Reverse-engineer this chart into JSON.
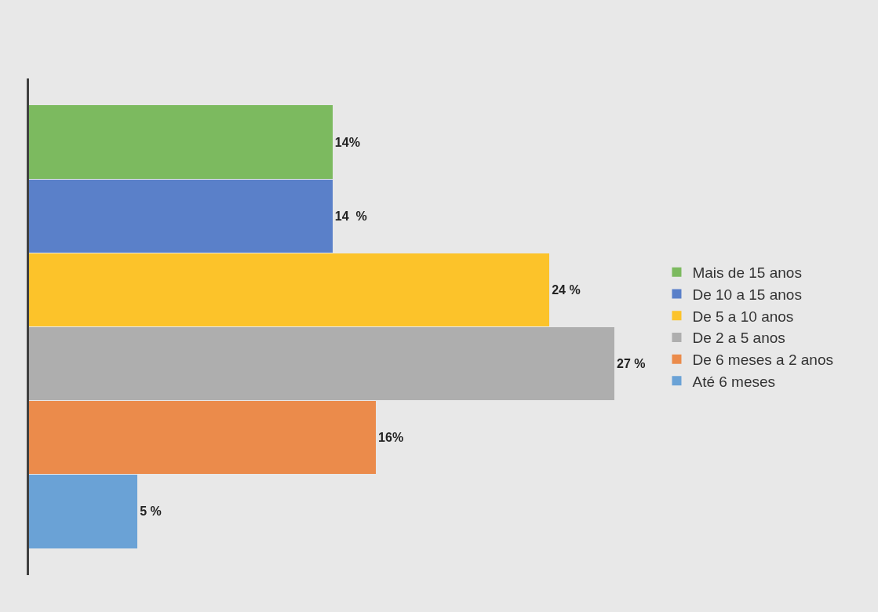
{
  "chart_data": {
    "type": "bar",
    "orientation": "horizontal",
    "stacked": true,
    "categories": [
      null,
      null,
      null,
      null,
      null,
      null
    ],
    "series": [
      {
        "name": "Mais de 15 anos",
        "color": "#7cba5f",
        "values": [
          14,
          null,
          null,
          null,
          null,
          null
        ],
        "value_labels": [
          "14%",
          null,
          null,
          null,
          null,
          null
        ]
      },
      {
        "name": "De 10 a 15 anos",
        "color": "#5a80c9",
        "values": [
          null,
          14,
          null,
          null,
          null,
          null
        ],
        "value_labels": [
          null,
          "14  %",
          null,
          null,
          null,
          null
        ]
      },
      {
        "name": "De 5 a 10 anos",
        "color": "#fcc32a",
        "values": [
          null,
          null,
          24,
          null,
          null,
          null
        ],
        "value_labels": [
          null,
          null,
          "24 %",
          null,
          null,
          null
        ]
      },
      {
        "name": "De 2 a 5 anos",
        "color": "#aeaeae",
        "values": [
          null,
          null,
          null,
          27,
          null,
          null
        ],
        "value_labels": [
          null,
          null,
          null,
          "27 %",
          null,
          null
        ]
      },
      {
        "name": "De 6 meses a 2 anos",
        "color": "#eb8b4b",
        "values": [
          null,
          null,
          null,
          null,
          16,
          null
        ],
        "value_labels": [
          null,
          null,
          null,
          null,
          "16%",
          null
        ]
      },
      {
        "name": "Até 6 meses",
        "color": "#6aa2d6",
        "values": [
          null,
          null,
          null,
          null,
          null,
          5
        ],
        "value_labels": [
          null,
          null,
          null,
          null,
          null,
          "5 %"
        ]
      }
    ],
    "legend": "right",
    "grid": false
  }
}
